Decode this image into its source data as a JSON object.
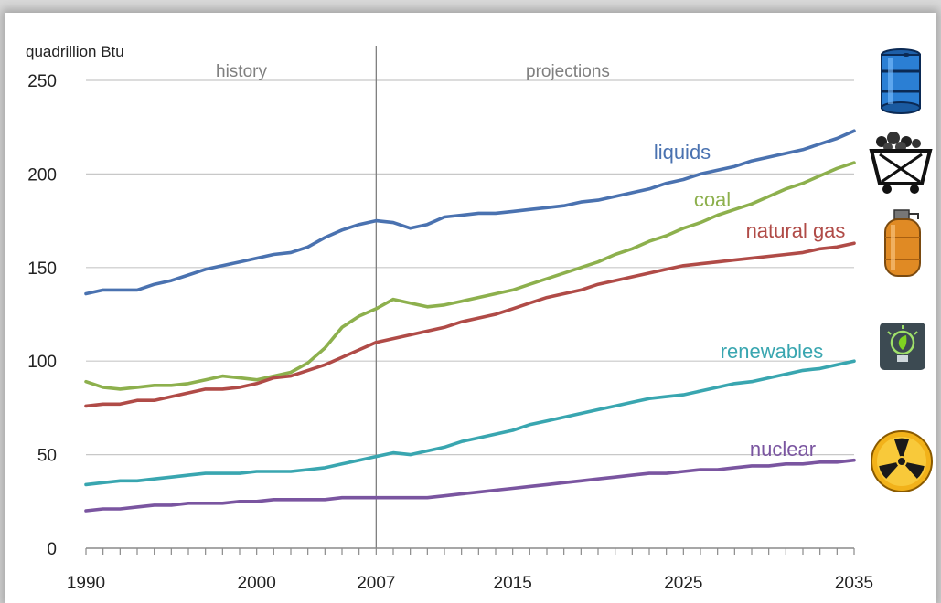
{
  "chart_data": {
    "type": "line",
    "ylabel": "quadrillion Btu",
    "ylim": [
      0,
      250
    ],
    "xlim": [
      1990,
      2035
    ],
    "y_ticks": [
      0,
      50,
      100,
      150,
      200,
      250
    ],
    "x_ticks": [
      1990,
      2000,
      2007,
      2015,
      2025,
      2035
    ],
    "divider_year": 2007,
    "sections": {
      "left": "history",
      "right": "projections"
    },
    "grid": "horizontal",
    "series": [
      {
        "name": "liquids",
        "color": "#4a72b0",
        "icon": "oil-barrel-icon",
        "points": [
          [
            1990,
            136
          ],
          [
            1991,
            138
          ],
          [
            1992,
            138
          ],
          [
            1993,
            138
          ],
          [
            1994,
            141
          ],
          [
            1995,
            143
          ],
          [
            1996,
            146
          ],
          [
            1997,
            149
          ],
          [
            1998,
            151
          ],
          [
            1999,
            153
          ],
          [
            2000,
            155
          ],
          [
            2001,
            157
          ],
          [
            2002,
            158
          ],
          [
            2003,
            161
          ],
          [
            2004,
            166
          ],
          [
            2005,
            170
          ],
          [
            2006,
            173
          ],
          [
            2007,
            175
          ],
          [
            2008,
            174
          ],
          [
            2009,
            171
          ],
          [
            2010,
            173
          ],
          [
            2011,
            177
          ],
          [
            2012,
            178
          ],
          [
            2013,
            179
          ],
          [
            2014,
            179
          ],
          [
            2015,
            180
          ],
          [
            2016,
            181
          ],
          [
            2017,
            182
          ],
          [
            2018,
            183
          ],
          [
            2019,
            185
          ],
          [
            2020,
            186
          ],
          [
            2021,
            188
          ],
          [
            2022,
            190
          ],
          [
            2023,
            192
          ],
          [
            2024,
            195
          ],
          [
            2025,
            197
          ],
          [
            2026,
            200
          ],
          [
            2027,
            202
          ],
          [
            2028,
            204
          ],
          [
            2029,
            207
          ],
          [
            2030,
            209
          ],
          [
            2031,
            211
          ],
          [
            2032,
            213
          ],
          [
            2033,
            216
          ],
          [
            2034,
            219
          ],
          [
            2035,
            223
          ]
        ]
      },
      {
        "name": "coal",
        "color": "#8db04d",
        "icon": "coal-cart-icon",
        "points": [
          [
            1990,
            89
          ],
          [
            1991,
            86
          ],
          [
            1992,
            85
          ],
          [
            1993,
            86
          ],
          [
            1994,
            87
          ],
          [
            1995,
            87
          ],
          [
            1996,
            88
          ],
          [
            1997,
            90
          ],
          [
            1998,
            92
          ],
          [
            1999,
            91
          ],
          [
            2000,
            90
          ],
          [
            2001,
            92
          ],
          [
            2002,
            94
          ],
          [
            2003,
            99
          ],
          [
            2004,
            107
          ],
          [
            2005,
            118
          ],
          [
            2006,
            124
          ],
          [
            2007,
            128
          ],
          [
            2008,
            133
          ],
          [
            2009,
            131
          ],
          [
            2010,
            129
          ],
          [
            2011,
            130
          ],
          [
            2012,
            132
          ],
          [
            2013,
            134
          ],
          [
            2014,
            136
          ],
          [
            2015,
            138
          ],
          [
            2016,
            141
          ],
          [
            2017,
            144
          ],
          [
            2018,
            147
          ],
          [
            2019,
            150
          ],
          [
            2020,
            153
          ],
          [
            2021,
            157
          ],
          [
            2022,
            160
          ],
          [
            2023,
            164
          ],
          [
            2024,
            167
          ],
          [
            2025,
            171
          ],
          [
            2026,
            174
          ],
          [
            2027,
            178
          ],
          [
            2028,
            181
          ],
          [
            2029,
            184
          ],
          [
            2030,
            188
          ],
          [
            2031,
            192
          ],
          [
            2032,
            195
          ],
          [
            2033,
            199
          ],
          [
            2034,
            203
          ],
          [
            2035,
            206
          ]
        ]
      },
      {
        "name": "natural gas",
        "color": "#b04b47",
        "icon": "gas-tank-icon",
        "points": [
          [
            1990,
            76
          ],
          [
            1991,
            77
          ],
          [
            1992,
            77
          ],
          [
            1993,
            79
          ],
          [
            1994,
            79
          ],
          [
            1995,
            81
          ],
          [
            1996,
            83
          ],
          [
            1997,
            85
          ],
          [
            1998,
            85
          ],
          [
            1999,
            86
          ],
          [
            2000,
            88
          ],
          [
            2001,
            91
          ],
          [
            2002,
            92
          ],
          [
            2003,
            95
          ],
          [
            2004,
            98
          ],
          [
            2005,
            102
          ],
          [
            2006,
            106
          ],
          [
            2007,
            110
          ],
          [
            2008,
            112
          ],
          [
            2009,
            114
          ],
          [
            2010,
            116
          ],
          [
            2011,
            118
          ],
          [
            2012,
            121
          ],
          [
            2013,
            123
          ],
          [
            2014,
            125
          ],
          [
            2015,
            128
          ],
          [
            2016,
            131
          ],
          [
            2017,
            134
          ],
          [
            2018,
            136
          ],
          [
            2019,
            138
          ],
          [
            2020,
            141
          ],
          [
            2021,
            143
          ],
          [
            2022,
            145
          ],
          [
            2023,
            147
          ],
          [
            2024,
            149
          ],
          [
            2025,
            151
          ],
          [
            2026,
            152
          ],
          [
            2027,
            153
          ],
          [
            2028,
            154
          ],
          [
            2029,
            155
          ],
          [
            2030,
            156
          ],
          [
            2031,
            157
          ],
          [
            2032,
            158
          ],
          [
            2033,
            160
          ],
          [
            2034,
            161
          ],
          [
            2035,
            163
          ]
        ]
      },
      {
        "name": "renewables",
        "color": "#39a6b0",
        "icon": "lightbulb-leaf-icon",
        "points": [
          [
            1990,
            34
          ],
          [
            1991,
            35
          ],
          [
            1992,
            36
          ],
          [
            1993,
            36
          ],
          [
            1994,
            37
          ],
          [
            1995,
            38
          ],
          [
            1996,
            39
          ],
          [
            1997,
            40
          ],
          [
            1998,
            40
          ],
          [
            1999,
            40
          ],
          [
            2000,
            41
          ],
          [
            2001,
            41
          ],
          [
            2002,
            41
          ],
          [
            2003,
            42
          ],
          [
            2004,
            43
          ],
          [
            2005,
            45
          ],
          [
            2006,
            47
          ],
          [
            2007,
            49
          ],
          [
            2008,
            51
          ],
          [
            2009,
            50
          ],
          [
            2010,
            52
          ],
          [
            2011,
            54
          ],
          [
            2012,
            57
          ],
          [
            2013,
            59
          ],
          [
            2014,
            61
          ],
          [
            2015,
            63
          ],
          [
            2016,
            66
          ],
          [
            2017,
            68
          ],
          [
            2018,
            70
          ],
          [
            2019,
            72
          ],
          [
            2020,
            74
          ],
          [
            2021,
            76
          ],
          [
            2022,
            78
          ],
          [
            2023,
            80
          ],
          [
            2024,
            81
          ],
          [
            2025,
            82
          ],
          [
            2026,
            84
          ],
          [
            2027,
            86
          ],
          [
            2028,
            88
          ],
          [
            2029,
            89
          ],
          [
            2030,
            91
          ],
          [
            2031,
            93
          ],
          [
            2032,
            95
          ],
          [
            2033,
            96
          ],
          [
            2034,
            98
          ],
          [
            2035,
            100
          ]
        ]
      },
      {
        "name": "nuclear",
        "color": "#7a55a0",
        "icon": "radiation-icon",
        "points": [
          [
            1990,
            20
          ],
          [
            1991,
            21
          ],
          [
            1992,
            21
          ],
          [
            1993,
            22
          ],
          [
            1994,
            23
          ],
          [
            1995,
            23
          ],
          [
            1996,
            24
          ],
          [
            1997,
            24
          ],
          [
            1998,
            24
          ],
          [
            1999,
            25
          ],
          [
            2000,
            25
          ],
          [
            2001,
            26
          ],
          [
            2002,
            26
          ],
          [
            2003,
            26
          ],
          [
            2004,
            26
          ],
          [
            2005,
            27
          ],
          [
            2006,
            27
          ],
          [
            2007,
            27
          ],
          [
            2008,
            27
          ],
          [
            2009,
            27
          ],
          [
            2010,
            27
          ],
          [
            2011,
            28
          ],
          [
            2012,
            29
          ],
          [
            2013,
            30
          ],
          [
            2014,
            31
          ],
          [
            2015,
            32
          ],
          [
            2016,
            33
          ],
          [
            2017,
            34
          ],
          [
            2018,
            35
          ],
          [
            2019,
            36
          ],
          [
            2020,
            37
          ],
          [
            2021,
            38
          ],
          [
            2022,
            39
          ],
          [
            2023,
            40
          ],
          [
            2024,
            40
          ],
          [
            2025,
            41
          ],
          [
            2026,
            42
          ],
          [
            2027,
            42
          ],
          [
            2028,
            43
          ],
          [
            2029,
            44
          ],
          [
            2030,
            44
          ],
          [
            2031,
            45
          ],
          [
            2032,
            45
          ],
          [
            2033,
            46
          ],
          [
            2034,
            46
          ],
          [
            2035,
            47
          ]
        ]
      }
    ]
  }
}
